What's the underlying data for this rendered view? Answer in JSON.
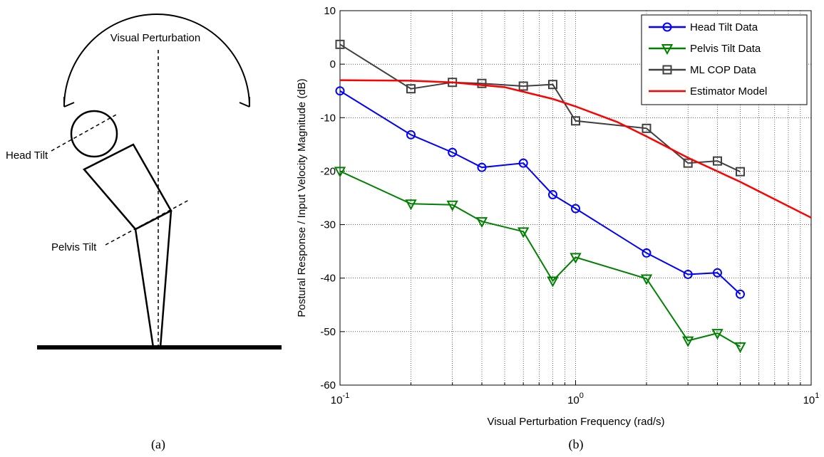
{
  "diagram": {
    "title": "Visual Perturbation",
    "head_label": "Head Tilt",
    "pelvis_label": "Pelvis Tilt",
    "caption": "(a)"
  },
  "caption_b": "(b)",
  "chart_data": {
    "type": "line",
    "xlabel": "Visual Perturbation Frequency (rad/s)",
    "ylabel": "Postural Response / Input Velocity Magnitude (dB)",
    "xscale": "log",
    "xlim": [
      0.1,
      10
    ],
    "ylim": [
      -60,
      10
    ],
    "xticks": [
      {
        "value": 0.1,
        "label": "10",
        "exponent": "-1"
      },
      {
        "value": 1,
        "label": "10",
        "exponent": "0"
      },
      {
        "value": 10,
        "label": "10",
        "exponent": "1"
      }
    ],
    "xminorticks": [
      0.2,
      0.3,
      0.4,
      0.5,
      0.6,
      0.7,
      0.8,
      0.9,
      2,
      3,
      4,
      5,
      6,
      7,
      8,
      9
    ],
    "yticks": [
      -60,
      -50,
      -40,
      -30,
      -20,
      -10,
      0,
      10
    ],
    "grid": true,
    "legend": "upper right",
    "series": [
      {
        "name": "Head Tilt Data",
        "color": "#0000ff",
        "marker": "circle",
        "x": [
          0.1,
          0.2,
          0.3,
          0.4,
          0.6,
          0.8,
          1,
          2,
          3,
          4,
          5
        ],
        "values": [
          -5,
          -13.2,
          -16.5,
          -19.3,
          -18.5,
          -24.4,
          -27,
          -35.3,
          -39.3,
          -39,
          -43
        ]
      },
      {
        "name": "Pelvis Tilt Data",
        "color": "#008000",
        "marker": "triangle-down",
        "x": [
          0.1,
          0.2,
          0.3,
          0.4,
          0.6,
          0.8,
          1,
          2,
          3,
          4,
          5
        ],
        "values": [
          -20,
          -26.1,
          -26.3,
          -29.4,
          -31.3,
          -40.5,
          -36.1,
          -40.1,
          -51.7,
          -50.3,
          -52.8
        ]
      },
      {
        "name": "ML COP Data",
        "color": "#404040",
        "marker": "square",
        "x": [
          0.1,
          0.2,
          0.3,
          0.4,
          0.6,
          0.8,
          1,
          2,
          3,
          4,
          5
        ],
        "values": [
          3.7,
          -4.6,
          -3.4,
          -3.6,
          -4.1,
          -3.8,
          -10.6,
          -12,
          -18.5,
          -18.1,
          -20.1
        ]
      },
      {
        "name": "Estimator Model",
        "color": "#ff0000",
        "marker": "none",
        "x": [
          0.1,
          0.2,
          0.3,
          0.5,
          0.8,
          1,
          1.5,
          2,
          3,
          5,
          10
        ],
        "values": [
          -3,
          -3.1,
          -3.4,
          -4.3,
          -6.5,
          -7.9,
          -10.8,
          -13.5,
          -17.5,
          -22,
          -28.7
        ]
      }
    ]
  }
}
